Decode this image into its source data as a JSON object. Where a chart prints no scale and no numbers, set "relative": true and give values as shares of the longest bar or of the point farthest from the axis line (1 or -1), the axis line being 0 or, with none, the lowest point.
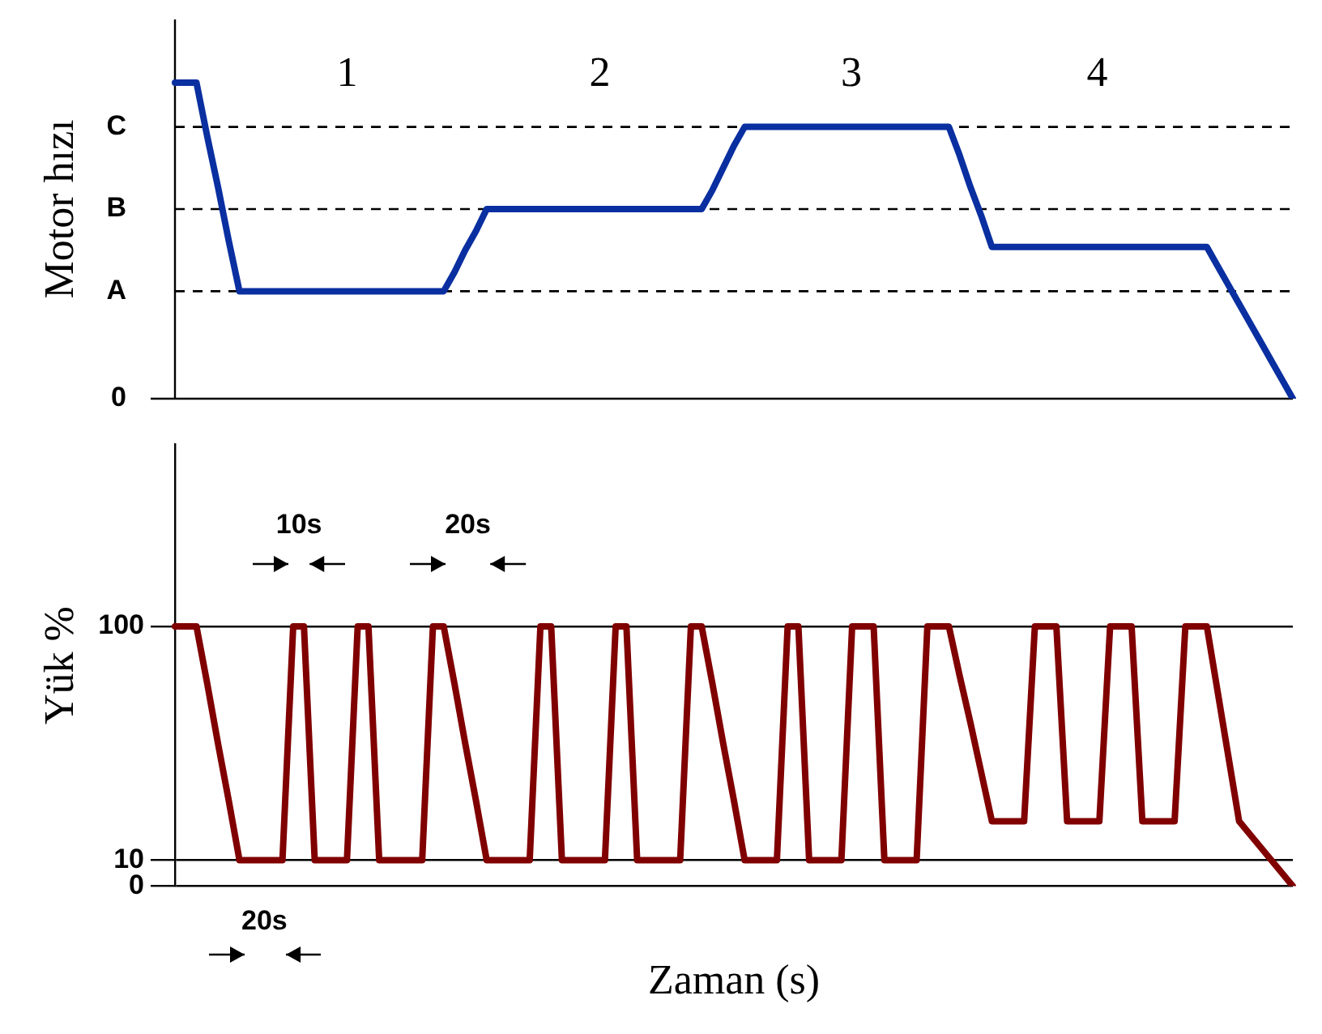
{
  "chart_data": [
    {
      "type": "line",
      "ylabel": "Motor hızı",
      "relative": true,
      "marker": "none",
      "tick_labels": false,
      "color": "#0a2fa0",
      "categories": [
        null,
        null,
        null,
        null,
        null,
        null,
        null,
        null,
        null,
        null,
        null,
        null,
        null,
        null,
        null,
        null,
        null,
        null,
        null,
        null,
        null,
        null,
        null,
        null,
        null,
        null,
        null,
        null,
        null,
        null,
        null,
        null,
        null,
        null,
        null,
        null,
        null,
        null,
        null,
        null,
        null,
        null,
        null,
        null,
        null,
        null,
        null,
        null,
        null,
        null,
        null,
        null,
        null,
        null,
        null,
        null,
        null,
        null,
        null,
        null,
        null,
        null,
        null,
        null,
        null,
        null,
        null,
        null,
        null,
        null,
        null,
        null,
        null,
        null,
        null,
        null,
        null,
        null,
        null,
        null,
        null,
        null,
        null,
        null,
        null,
        null,
        null,
        null,
        null,
        null,
        null,
        null,
        null,
        null,
        null,
        null,
        null,
        null,
        null,
        null,
        null,
        null,
        null,
        null,
        null
      ],
      "values": [
        1,
        1,
        1,
        0.83,
        0.67,
        0.5,
        0.34,
        0.34,
        0.34,
        0.34,
        0.34,
        0.34,
        0.34,
        0.34,
        0.34,
        0.34,
        0.34,
        0.34,
        0.34,
        0.34,
        0.34,
        0.34,
        0.34,
        0.34,
        0.34,
        0.34,
        0.4,
        0.47,
        0.53,
        0.6,
        0.6,
        0.6,
        0.6,
        0.6,
        0.6,
        0.6,
        0.6,
        0.6,
        0.6,
        0.6,
        0.6,
        0.6,
        0.6,
        0.6,
        0.6,
        0.6,
        0.6,
        0.6,
        0.6,
        0.6,
        0.66,
        0.73,
        0.8,
        0.86,
        0.86,
        0.86,
        0.86,
        0.86,
        0.86,
        0.86,
        0.86,
        0.86,
        0.86,
        0.86,
        0.86,
        0.86,
        0.86,
        0.86,
        0.86,
        0.86,
        0.86,
        0.86,
        0.86,
        0.77,
        0.67,
        0.58,
        0.48,
        0.48,
        0.48,
        0.48,
        0.48,
        0.48,
        0.48,
        0.48,
        0.48,
        0.48,
        0.48,
        0.48,
        0.48,
        0.48,
        0.48,
        0.48,
        0.48,
        0.48,
        0.48,
        0.48,
        0.48,
        0.42,
        0.36,
        0.3,
        0.24,
        0.18,
        0.12,
        0.06,
        0
      ],
      "ref_lines": [
        {
          "axis": "y",
          "value": 0,
          "label": "0",
          "line_style": "solid"
        },
        {
          "axis": "y",
          "value": 0.34,
          "label": "A",
          "line_style": "dashed"
        },
        {
          "axis": "y",
          "value": 0.6,
          "label": "B",
          "line_style": "dashed"
        },
        {
          "axis": "y",
          "value": 0.86,
          "label": "C",
          "line_style": "dashed"
        }
      ],
      "annotations": [
        "1",
        "2",
        "3",
        "4"
      ]
    },
    {
      "type": "line",
      "xlabel": "Zaman (s)",
      "ylabel": "Yük %",
      "marker": "none",
      "tick_labels": "y",
      "grid": "y",
      "color": "#800000",
      "ylim": [
        0,
        170
      ],
      "yticks": [
        0,
        10,
        100
      ],
      "categories": [
        null,
        null,
        null,
        null,
        null,
        null,
        null,
        null,
        null,
        null,
        null,
        null,
        null,
        null,
        null,
        null,
        null,
        null,
        null,
        null,
        null,
        null,
        null,
        null,
        null,
        null,
        null,
        null,
        null,
        null,
        null,
        null,
        null,
        null,
        null,
        null,
        null,
        null,
        null,
        null,
        null,
        null,
        null,
        null,
        null,
        null,
        null,
        null,
        null,
        null,
        null,
        null,
        null,
        null,
        null,
        null,
        null,
        null,
        null,
        null,
        null,
        null,
        null,
        null,
        null,
        null,
        null,
        null,
        null,
        null,
        null,
        null,
        null,
        null,
        null,
        null,
        null,
        null,
        null,
        null,
        null,
        null,
        null,
        null,
        null,
        null,
        null,
        null,
        null,
        null,
        null,
        null,
        null,
        null,
        null,
        null,
        null,
        null,
        null,
        null,
        null,
        null,
        null,
        null,
        null
      ],
      "values": [
        100,
        100,
        100,
        78,
        55,
        33,
        10,
        10,
        10,
        10,
        10,
        100,
        100,
        10,
        10,
        10,
        10,
        100,
        100,
        10,
        10,
        10,
        10,
        10,
        100,
        100,
        78,
        55,
        33,
        10,
        10,
        10,
        10,
        10,
        100,
        100,
        10,
        10,
        10,
        10,
        10,
        100,
        100,
        10,
        10,
        10,
        10,
        10,
        100,
        100,
        78,
        55,
        33,
        10,
        10,
        10,
        10,
        100,
        100,
        10,
        10,
        10,
        10,
        100,
        100,
        100,
        10,
        10,
        10,
        10,
        100,
        100,
        100,
        81,
        63,
        44,
        25,
        25,
        25,
        25,
        100,
        100,
        100,
        25,
        25,
        25,
        25,
        100,
        100,
        100,
        25,
        25,
        25,
        25,
        100,
        100,
        100,
        75,
        50,
        25,
        20,
        15,
        10,
        5,
        0
      ],
      "annotations": [
        "10s",
        "20s",
        "20s"
      ]
    }
  ]
}
